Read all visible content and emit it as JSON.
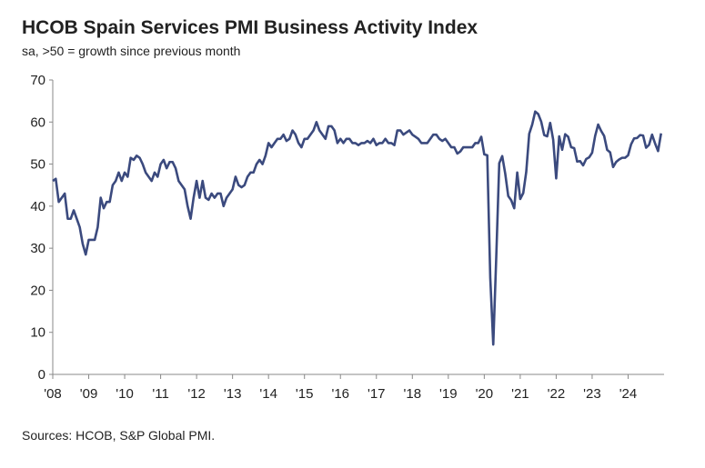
{
  "chart_data": {
    "type": "line",
    "title": "HCOB Spain Services PMI Business Activity Index",
    "subtitle": "sa, >50 = growth since previous month",
    "source": "Sources: HCOB, S&P Global PMI.",
    "categories": [
      "'08",
      null,
      null,
      null,
      null,
      null,
      null,
      null,
      null,
      null,
      null,
      null,
      "'09",
      null,
      null,
      null,
      null,
      null,
      null,
      null,
      null,
      null,
      null,
      null,
      "'10",
      null,
      null,
      null,
      null,
      null,
      null,
      null,
      null,
      null,
      null,
      null,
      "'11",
      null,
      null,
      null,
      null,
      null,
      null,
      null,
      null,
      null,
      null,
      null,
      "'12",
      null,
      null,
      null,
      null,
      null,
      null,
      null,
      null,
      null,
      null,
      null,
      "'13",
      null,
      null,
      null,
      null,
      null,
      null,
      null,
      null,
      null,
      null,
      null,
      "'14",
      null,
      null,
      null,
      null,
      null,
      null,
      null,
      null,
      null,
      null,
      null,
      "'15",
      null,
      null,
      null,
      null,
      null,
      null,
      null,
      null,
      null,
      null,
      null,
      "'16",
      null,
      null,
      null,
      null,
      null,
      null,
      null,
      null,
      null,
      null,
      null,
      "'17",
      null,
      null,
      null,
      null,
      null,
      null,
      null,
      null,
      null,
      null,
      null,
      "'18",
      null,
      null,
      null,
      null,
      null,
      null,
      null,
      null,
      null,
      null,
      null,
      "'19",
      null,
      null,
      null,
      null,
      null,
      null,
      null,
      null,
      null,
      null,
      null,
      "'20",
      null,
      null,
      null,
      null,
      null,
      null,
      null,
      null,
      null,
      null,
      null,
      "'21",
      null,
      null,
      null,
      null,
      null,
      null,
      null,
      null,
      null,
      null,
      null,
      "'22",
      null,
      null,
      null,
      null,
      null,
      null,
      null,
      null,
      null,
      null,
      null,
      "'23",
      null,
      null,
      null,
      null,
      null,
      null,
      null,
      null,
      null,
      null,
      null,
      "'24",
      null,
      null,
      null,
      null,
      null,
      null,
      null,
      null,
      null,
      null,
      null
    ],
    "series": [
      {
        "name": "HCOB Spain Services PMI Business Activity Index",
        "color": "#3b4a7e",
        "values": [
          46,
          46.5,
          41,
          42,
          43,
          37,
          37,
          39,
          37,
          35,
          31,
          28.5,
          32,
          32,
          32,
          35,
          42,
          39.5,
          41,
          41,
          45,
          46,
          48,
          46,
          48,
          47,
          51.5,
          51,
          52,
          51.5,
          50,
          48,
          47,
          46,
          48,
          47,
          50,
          51,
          49,
          50.5,
          50.5,
          49,
          46,
          45,
          44,
          40,
          37,
          42,
          46,
          42,
          46,
          42,
          41.5,
          43,
          42,
          43,
          43,
          40,
          42,
          43,
          44,
          47,
          45,
          44.5,
          45,
          47,
          48,
          48,
          50,
          51,
          50,
          52,
          55,
          54,
          55,
          56,
          56,
          57,
          55.5,
          56,
          58,
          57,
          55,
          54,
          56,
          56,
          57,
          58,
          60,
          58,
          57,
          56,
          59,
          59,
          58,
          55,
          56,
          55,
          56,
          56,
          55,
          55,
          54.5,
          55,
          55,
          55.5,
          55,
          56,
          54.5,
          55,
          55,
          56,
          55,
          55,
          54.5,
          58,
          58,
          57,
          57.5,
          58,
          57,
          56.5,
          56,
          55,
          55,
          55,
          56,
          57,
          57,
          56,
          55.5,
          56,
          55,
          54,
          54,
          52.5,
          53,
          54,
          54,
          54,
          54,
          55,
          55,
          56.5,
          52.3,
          52.1,
          23,
          7.1,
          27.9,
          50.2,
          51.9,
          47.7,
          42.4,
          41.4,
          39.5,
          48,
          41.7,
          43.1,
          48.1,
          57.2,
          59.4,
          62.5,
          61.9,
          60.1,
          56.9,
          56.6,
          59.8,
          55.8,
          46.6,
          56.6,
          53.4,
          57.1,
          56.5,
          54,
          53.8,
          50.6,
          50.7,
          49.7,
          51.2,
          51.6,
          52.7,
          56.7,
          59.4,
          57.9,
          56.7,
          53.4,
          52.8,
          49.3,
          50.5,
          51.1,
          51.5,
          51.5,
          52.1,
          54.7,
          56.1,
          56.2,
          56.9,
          56.8,
          53.9,
          54.6,
          57,
          54.9,
          53.1,
          57.3
        ]
      }
    ],
    "ylim": [
      0,
      70
    ],
    "yticks": [
      0,
      10,
      20,
      30,
      40,
      50,
      60,
      70
    ],
    "grid": false
  }
}
